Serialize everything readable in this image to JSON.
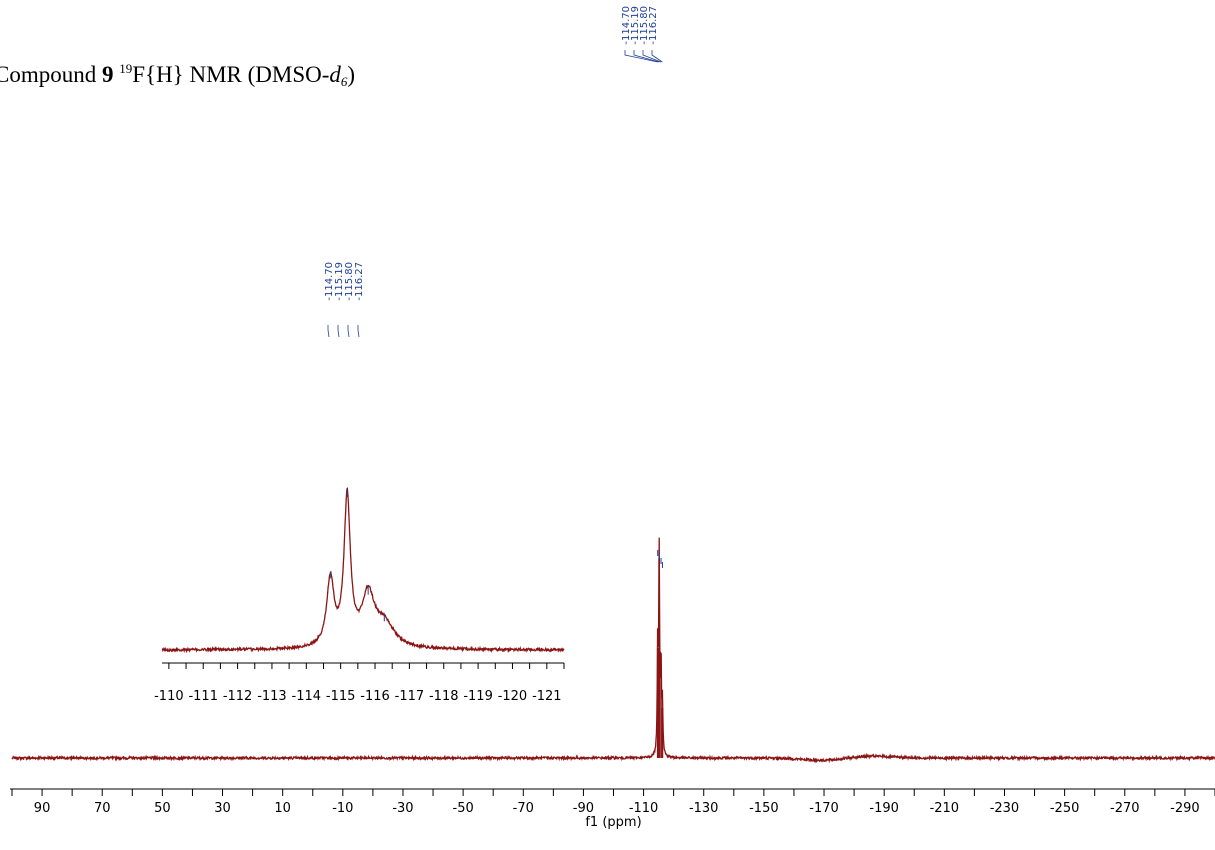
{
  "title": {
    "prefix": "Compound",
    "compound_number": "9",
    "isotope_mass": "19",
    "nucleus": "F{H} NMR (DMSO-",
    "solvent_d": "d",
    "solvent_sub": "6",
    "suffix": ")"
  },
  "colors": {
    "spectrum": "#8b1414",
    "peak_label": "#1f3f99",
    "axis": "#000000"
  },
  "chart_data": [
    {
      "type": "line",
      "name": "main-spectrum",
      "xlabel": "f1 (ppm)",
      "xlim": [
        100,
        -300
      ],
      "x_reversed": true,
      "x_ticks": [
        90,
        70,
        50,
        30,
        10,
        -10,
        -30,
        -50,
        -70,
        -90,
        -110,
        -130,
        -150,
        -170,
        -190,
        -210,
        -230,
        -250,
        -270,
        -290
      ],
      "x_tick_labels": [
        "90",
        "70",
        "50",
        "30",
        "10",
        "-10",
        "-30",
        "-50",
        "-70",
        "-90",
        "-110",
        "-130",
        "-150",
        "-170",
        "-190",
        "-210",
        "-230",
        "-250",
        "-270",
        "-290"
      ],
      "peaks_ppm": [
        -114.7,
        -115.19,
        -115.8,
        -116.27
      ],
      "peak_labels": [
        "-114.70",
        "-115.19",
        "-115.80",
        "-116.27"
      ],
      "peak_relative_heights": [
        0.55,
        1.0,
        0.45,
        0.25
      ],
      "baseline_features": [
        {
          "center_ppm": -170,
          "width_ppm": 14,
          "relative_height": -0.012
        },
        {
          "center_ppm": -185,
          "width_ppm": 14,
          "relative_height": 0.01
        }
      ]
    },
    {
      "type": "line",
      "name": "inset-spectrum",
      "xlabel": "",
      "xlim": [
        -109.8,
        -121.5
      ],
      "x_reversed": true,
      "x_ticks": [
        -110,
        -111,
        -112,
        -113,
        -114,
        -115,
        -116,
        -117,
        -118,
        -119,
        -120,
        -121
      ],
      "x_tick_labels": [
        "-110",
        "-111",
        "-112",
        "-113",
        "-114",
        "-115",
        "-116",
        "-117",
        "-118",
        "-119",
        "-120",
        "-121"
      ],
      "peaks_ppm": [
        -114.7,
        -115.19,
        -115.8,
        -116.27
      ],
      "peak_labels": [
        "-114.70",
        "-115.19",
        "-115.80",
        "-116.27"
      ],
      "peak_relative_heights": [
        0.45,
        1.0,
        0.34,
        0.16
      ]
    }
  ]
}
